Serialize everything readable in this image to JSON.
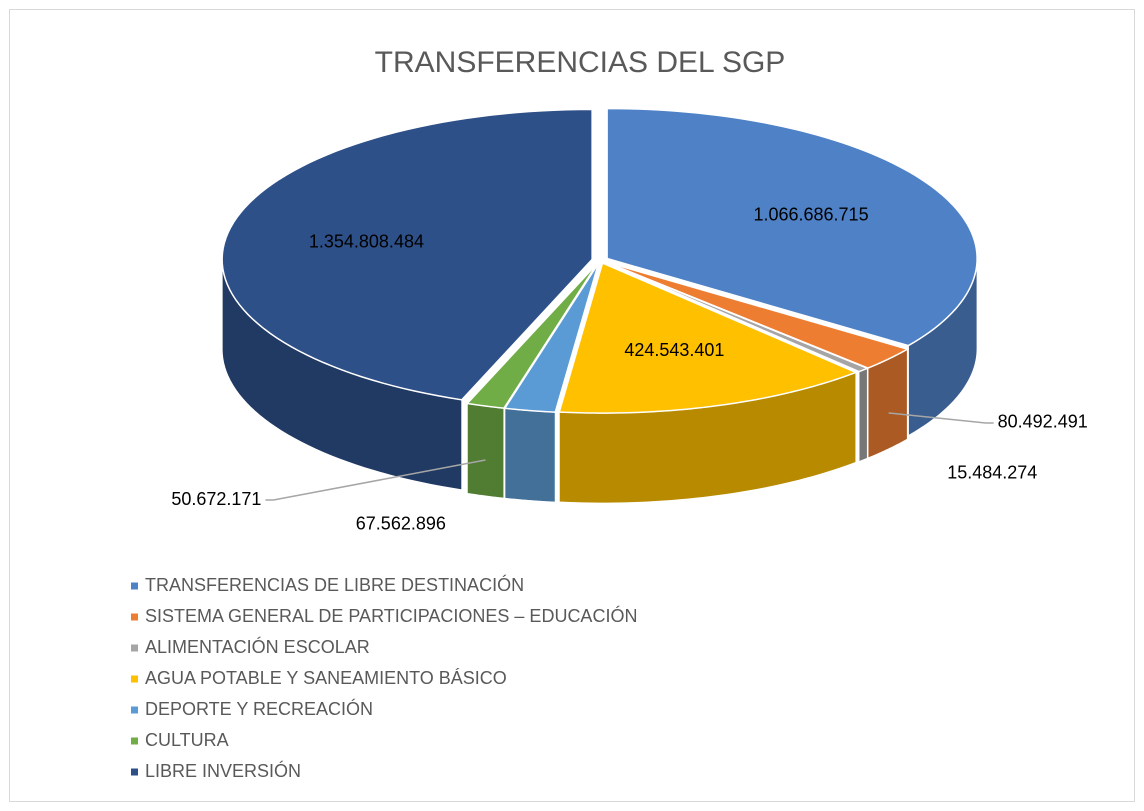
{
  "chart_data": {
    "type": "pie3d",
    "title": "TRANSFERENCIAS DEL SGP",
    "categories": [
      "TRANSFERENCIAS DE LIBRE DESTINACIÓN",
      "SISTEMA GENERAL DE PARTICIPACIONES – EDUCACIÓN",
      "ALIMENTACIÓN ESCOLAR",
      "AGUA POTABLE Y SANEAMIENTO BÁSICO",
      "DEPORTE Y RECREACIÓN",
      "CULTURA",
      "LIBRE INVERSIÓN"
    ],
    "values": [
      1066686715,
      80492491,
      15484274,
      424543401,
      67562896,
      50672171,
      1354808484
    ],
    "value_labels": [
      "1.066.686.715",
      "80.492.491",
      "15.484.274",
      "424.543.401",
      "67.562.896",
      "50.672.171",
      "1.354.808.484"
    ],
    "colors": [
      "#4f81c7",
      "#ed7d31",
      "#a5a5a5",
      "#ffc000",
      "#5b9bd5",
      "#70ad47",
      "#2e5089"
    ],
    "legend": "bottom-left"
  }
}
